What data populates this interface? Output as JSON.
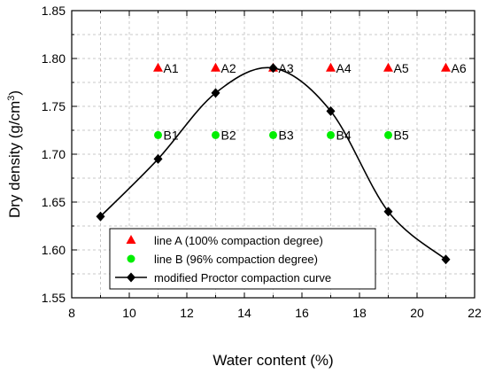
{
  "chart_data": {
    "type": "scatter",
    "xlabel": "Water content (%)",
    "ylabel_main": "Dry density (g/cm",
    "ylabel_sup": "3",
    "ylabel_close": ")",
    "xlim": [
      8,
      22
    ],
    "ylim": [
      1.55,
      1.85
    ],
    "xticks": [
      "8",
      "10",
      "12",
      "14",
      "16",
      "18",
      "20",
      "22"
    ],
    "yticks": [
      "1.55",
      "1.60",
      "1.65",
      "1.70",
      "1.75",
      "1.80",
      "1.85"
    ],
    "grid": true,
    "legend_position": "bottom-center",
    "series": [
      {
        "name": "line A (100% compaction degree)",
        "marker": "triangle",
        "color": "#ff0000",
        "points": [
          {
            "x": 11,
            "y": 1.79,
            "label": "A1"
          },
          {
            "x": 13,
            "y": 1.79,
            "label": "A2"
          },
          {
            "x": 15,
            "y": 1.79,
            "label": "A3"
          },
          {
            "x": 17,
            "y": 1.79,
            "label": "A4"
          },
          {
            "x": 19,
            "y": 1.79,
            "label": "A5"
          },
          {
            "x": 21,
            "y": 1.79,
            "label": "A6"
          }
        ]
      },
      {
        "name": "line B (96% compaction degree)",
        "marker": "circle",
        "color": "#00ee00",
        "points": [
          {
            "x": 11,
            "y": 1.72,
            "label": "B1"
          },
          {
            "x": 13,
            "y": 1.72,
            "label": "B2"
          },
          {
            "x": 15,
            "y": 1.72,
            "label": "B3"
          },
          {
            "x": 17,
            "y": 1.72,
            "label": "B4"
          },
          {
            "x": 19,
            "y": 1.72,
            "label": "B5"
          }
        ]
      },
      {
        "name": "modified Proctor compaction curve",
        "marker": "diamond",
        "color": "#000000",
        "line": "smooth",
        "points": [
          {
            "x": 9,
            "y": 1.635
          },
          {
            "x": 11,
            "y": 1.695
          },
          {
            "x": 13,
            "y": 1.764
          },
          {
            "x": 15,
            "y": 1.79
          },
          {
            "x": 17,
            "y": 1.745
          },
          {
            "x": 19,
            "y": 1.64
          },
          {
            "x": 21,
            "y": 1.59
          }
        ]
      }
    ]
  }
}
